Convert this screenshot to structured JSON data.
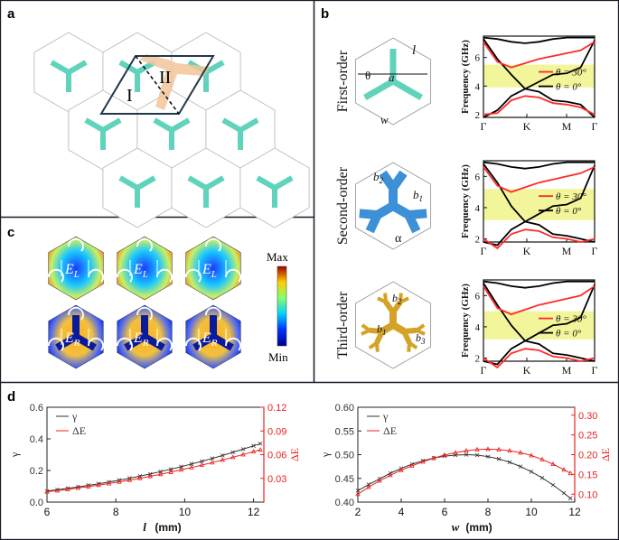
{
  "panels": {
    "a": {
      "label": "a",
      "region_I": "I",
      "region_II": "II"
    },
    "b": {
      "label": "b",
      "rows": [
        {
          "order": "First-order",
          "symbols": {
            "theta": "θ",
            "l": "l",
            "a": "a",
            "w": "w"
          },
          "chart_data": {
            "type": "line",
            "ylabel": "Frequency (GHz)",
            "categories": [
              "Γ",
              "K",
              "M",
              "Γ"
            ],
            "yticks": [
              "2",
              "4",
              "6"
            ],
            "ylim": [
              1.8,
              7.5
            ],
            "bandgap": [
              3.9,
              5.5
            ],
            "series": [
              {
                "name": "θ = 30°",
                "color": "#ff2a2a"
              },
              {
                "name": "θ = 0°",
                "color": "#000000"
              }
            ]
          }
        },
        {
          "order": "Second-order",
          "symbols": {
            "b2": "b",
            "b2_sub": "2",
            "b1": "b",
            "b1_sub": "1",
            "alpha": "α"
          },
          "chart_data": {
            "type": "line",
            "ylabel": "Frequency (GHz)",
            "categories": [
              "Γ",
              "K",
              "M",
              "Γ"
            ],
            "yticks": [
              "2",
              "4",
              "6"
            ],
            "ylim": [
              1.8,
              7.0
            ],
            "bandgap": [
              3.2,
              5.2
            ],
            "series": [
              {
                "name": "θ = 30°",
                "color": "#ff2a2a"
              },
              {
                "name": "θ = 0°",
                "color": "#000000"
              }
            ]
          }
        },
        {
          "order": "Third-order",
          "symbols": {
            "b2": "b",
            "b2_sub": "2",
            "b1": "b",
            "b1_sub": "1",
            "b3": "b",
            "b3_sub": "3"
          },
          "chart_data": {
            "type": "line",
            "ylabel": "Frequency (GHz)",
            "categories": [
              "Γ",
              "K",
              "M",
              "Γ"
            ],
            "yticks": [
              "2",
              "4",
              "6"
            ],
            "ylim": [
              1.8,
              7.0
            ],
            "bandgap": [
              3.2,
              5.0
            ],
            "series": [
              {
                "name": "θ = 30°",
                "color": "#ff2a2a"
              },
              {
                "name": "θ = 0°",
                "color": "#000000"
              }
            ]
          }
        }
      ]
    },
    "c": {
      "label": "c",
      "field_left": "E",
      "field_left_sub": "L",
      "field_right": "E",
      "field_right_sub": "R",
      "colorbar": {
        "max": "Max",
        "min": "Min"
      }
    },
    "d": {
      "label": "d",
      "charts": [
        {
          "type": "line",
          "xlabel": "l",
          "xunit": "(mm)",
          "ylabel": "γ",
          "y2label": "ΔE",
          "xlim": [
            6,
            12.3
          ],
          "ylim": [
            0.0,
            0.6
          ],
          "y2lim": [
            0.0,
            0.12
          ],
          "xticks": [
            "6",
            "8",
            "10",
            "12"
          ],
          "yticks": [
            "0.0",
            "0.2",
            "0.4",
            "0.6"
          ],
          "y2ticks": [
            "0.03",
            "0.06",
            "0.09",
            "0.12"
          ],
          "legend": [
            "γ",
            "ΔE"
          ],
          "series": [
            {
              "name": "γ",
              "axis": "left",
              "color": "#333333",
              "x": [
                6.0,
                6.3,
                6.6,
                6.9,
                7.2,
                7.5,
                7.8,
                8.1,
                8.4,
                8.7,
                9.0,
                9.3,
                9.6,
                9.9,
                10.2,
                10.5,
                10.8,
                11.1,
                11.4,
                11.7,
                12.0,
                12.2
              ],
              "y": [
                0.07,
                0.078,
                0.087,
                0.096,
                0.106,
                0.116,
                0.127,
                0.139,
                0.151,
                0.164,
                0.178,
                0.193,
                0.208,
                0.224,
                0.241,
                0.258,
                0.276,
                0.295,
                0.315,
                0.335,
                0.356,
                0.37
              ]
            },
            {
              "name": "ΔE",
              "axis": "right",
              "color": "#e8231e",
              "x": [
                6.0,
                6.3,
                6.6,
                6.9,
                7.2,
                7.5,
                7.8,
                8.1,
                8.4,
                8.7,
                9.0,
                9.3,
                9.6,
                9.9,
                10.2,
                10.5,
                10.8,
                11.1,
                11.4,
                11.7,
                12.0,
                12.2
              ],
              "y": [
                0.013,
                0.0145,
                0.016,
                0.0178,
                0.0196,
                0.0215,
                0.0235,
                0.0256,
                0.0278,
                0.0302,
                0.0326,
                0.0352,
                0.0379,
                0.0408,
                0.0437,
                0.0468,
                0.05,
                0.0533,
                0.0567,
                0.0602,
                0.0638,
                0.0662
              ]
            }
          ]
        },
        {
          "type": "line",
          "xlabel": "w",
          "xunit": "(mm)",
          "ylabel": "γ",
          "y2label": "ΔE",
          "xlim": [
            2,
            12
          ],
          "ylim": [
            0.4,
            0.6
          ],
          "y2lim": [
            0.08,
            0.32
          ],
          "xticks": [
            "2",
            "4",
            "6",
            "8",
            "10",
            "12"
          ],
          "yticks": [
            "0.40",
            "0.45",
            "0.50",
            "0.55",
            "0.60"
          ],
          "y2ticks": [
            "0.10",
            "0.15",
            "0.20",
            "0.25",
            "0.30"
          ],
          "legend": [
            "γ",
            "ΔE"
          ],
          "series": [
            {
              "name": "γ",
              "axis": "left",
              "color": "#333333",
              "x": [
                2.0,
                2.5,
                3.0,
                3.5,
                4.0,
                4.5,
                5.0,
                5.5,
                6.0,
                6.5,
                7.0,
                7.5,
                8.0,
                8.5,
                9.0,
                9.5,
                10.0,
                10.5,
                11.0,
                11.5,
                11.8
              ],
              "y": [
                0.424,
                0.437,
                0.449,
                0.461,
                0.471,
                0.48,
                0.487,
                0.493,
                0.497,
                0.499,
                0.5,
                0.499,
                0.496,
                0.491,
                0.484,
                0.475,
                0.464,
                0.451,
                0.436,
                0.419,
                0.408
              ]
            },
            {
              "name": "ΔE",
              "axis": "right",
              "color": "#e8231e",
              "x": [
                2.0,
                2.5,
                3.0,
                3.5,
                4.0,
                4.5,
                5.0,
                5.5,
                6.0,
                6.5,
                7.0,
                7.5,
                8.0,
                8.5,
                9.0,
                9.5,
                10.0,
                10.5,
                11.0,
                11.5,
                11.8
              ],
              "y": [
                0.1,
                0.118,
                0.134,
                0.148,
                0.161,
                0.172,
                0.182,
                0.191,
                0.199,
                0.205,
                0.21,
                0.213,
                0.214,
                0.213,
                0.21,
                0.205,
                0.198,
                0.188,
                0.176,
                0.162,
                0.153
              ]
            }
          ]
        }
      ]
    }
  }
}
